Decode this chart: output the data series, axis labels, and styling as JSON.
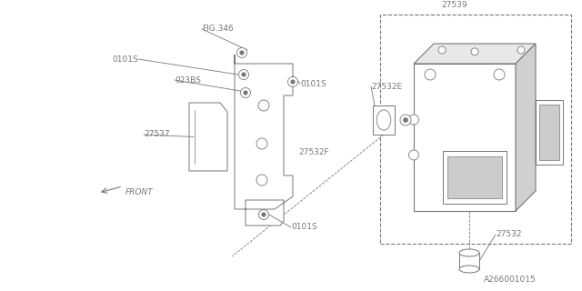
{
  "bg_color": "#ffffff",
  "line_color": "#777777",
  "text_color": "#777777",
  "fig_width": 6.4,
  "fig_height": 3.2,
  "dpi": 100,
  "xlim": [
    0,
    6.4
  ],
  "ylim": [
    0,
    3.2
  ],
  "footer_text": "A266001015"
}
